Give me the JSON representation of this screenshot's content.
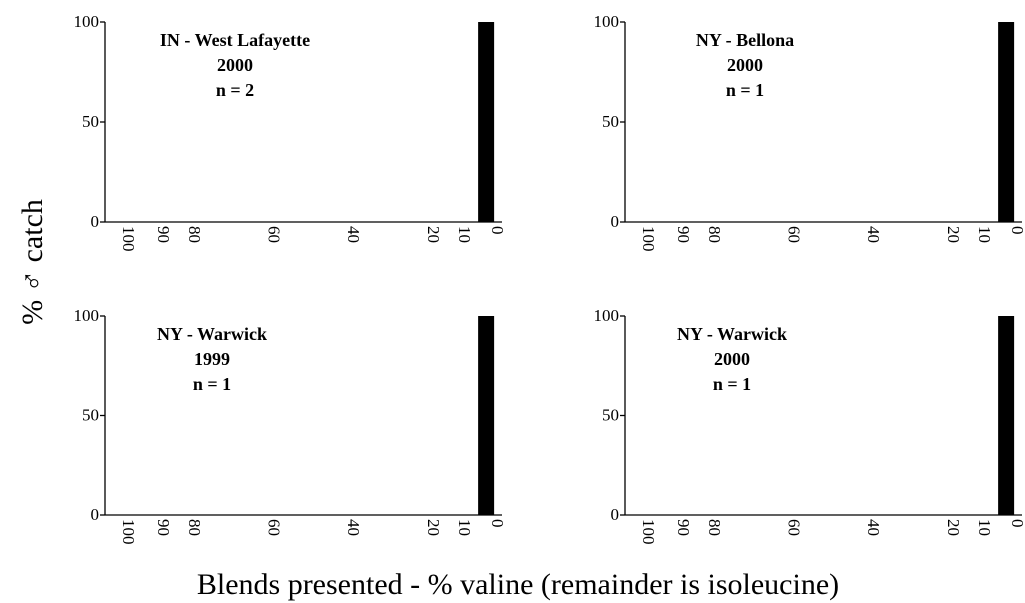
{
  "ylabel": "% ♂ catch",
  "xlabel": "Blends presented - % valine (remainder is isoleucine)",
  "chart_data": [
    {
      "type": "bar",
      "annotation": [
        "IN - West Lafayette",
        "2000",
        "n = 2"
      ],
      "categories": [
        "100",
        "90",
        "80",
        "60",
        "40",
        "20",
        "10",
        "0"
      ],
      "values": [
        0,
        0,
        0,
        0,
        0,
        0,
        0,
        100
      ],
      "ylim": [
        0,
        100
      ],
      "yticks": [
        "0",
        "50",
        "100"
      ]
    },
    {
      "type": "bar",
      "annotation": [
        "NY - Bellona",
        "2000",
        "n = 1"
      ],
      "categories": [
        "100",
        "90",
        "80",
        "60",
        "40",
        "20",
        "10",
        "0"
      ],
      "values": [
        0,
        0,
        0,
        0,
        0,
        0,
        0,
        100
      ],
      "ylim": [
        0,
        100
      ],
      "yticks": [
        "0",
        "50",
        "100"
      ]
    },
    {
      "type": "bar",
      "annotation": [
        "NY - Warwick",
        "1999",
        "n = 1"
      ],
      "categories": [
        "100",
        "90",
        "80",
        "60",
        "40",
        "20",
        "10",
        "0"
      ],
      "values": [
        0,
        0,
        0,
        0,
        0,
        0,
        0,
        100
      ],
      "ylim": [
        0,
        100
      ],
      "yticks": [
        "0",
        "50",
        "100"
      ]
    },
    {
      "type": "bar",
      "annotation": [
        "NY - Warwick",
        "2000",
        "n = 1"
      ],
      "categories": [
        "100",
        "90",
        "80",
        "60",
        "40",
        "20",
        "10",
        "0"
      ],
      "values": [
        0,
        0,
        0,
        0,
        0,
        0,
        0,
        100
      ],
      "ylim": [
        0,
        100
      ],
      "yticks": [
        "0",
        "50",
        "100"
      ]
    }
  ]
}
